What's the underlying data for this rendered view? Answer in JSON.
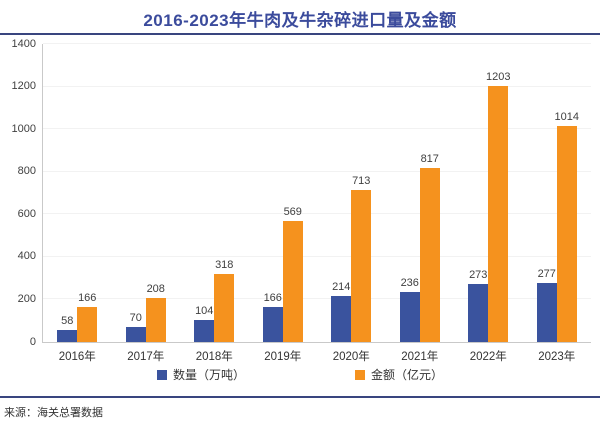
{
  "title": "2016-2023年牛肉及牛杂碎进口量及金额",
  "source": "来源：海关总署数据",
  "colors": {
    "quantity_bar": "#3A539E",
    "amount_bar": "#F5921E",
    "title_text": "#3B4B9C",
    "divider_rule": "#39457F",
    "axis_line": "#C9C9C9",
    "label_text": "#404040"
  },
  "chart_data": {
    "type": "bar",
    "title": "2016-2023年牛肉及牛杂碎进口量及金额",
    "categories": [
      "2016年",
      "2017年",
      "2018年",
      "2019年",
      "2020年",
      "2021年",
      "2022年",
      "2023年"
    ],
    "series": [
      {
        "name": "数量（万吨）",
        "key": "quantity",
        "color": "#3A539E",
        "values": [
          58,
          70,
          104,
          166,
          214,
          236,
          273,
          277
        ]
      },
      {
        "name": "金额（亿元）",
        "key": "amount",
        "color": "#F5921E",
        "values": [
          166,
          208,
          318,
          569,
          713,
          817,
          1203,
          1014
        ]
      }
    ],
    "xlabel": "",
    "ylabel": "",
    "ylim": [
      0,
      1400
    ],
    "yticks": [
      0,
      200,
      400,
      600,
      800,
      1000,
      1200,
      1400
    ],
    "grid": false,
    "legend_position": "bottom",
    "data_labels": true
  }
}
